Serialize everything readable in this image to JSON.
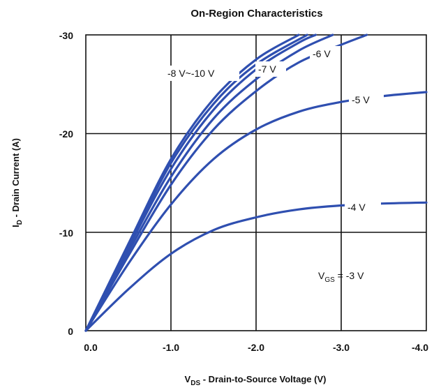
{
  "chart_data": {
    "type": "line",
    "title": "On-Region Characteristics",
    "xlabel_main": "V",
    "xlabel_sub": "DS",
    "xlabel_rest": " - Drain-to-Source Voltage (V)",
    "ylabel_main": "I",
    "ylabel_sub": "D",
    "ylabel_rest": " - Drain Current (A)",
    "xlim": [
      0,
      -4
    ],
    "ylim": [
      0,
      -30
    ],
    "xticks": [
      "0.0",
      "-1.0",
      "-2.0",
      "-3.0",
      "-4.0"
    ],
    "yticks": [
      "0",
      "-10",
      "-20",
      "-30"
    ],
    "grid": true,
    "series": [
      {
        "name": "-10 V",
        "x": [
          0,
          -0.5,
          -1.0,
          -1.5,
          -2.0,
          -2.5
        ],
        "y": [
          0,
          -8.8,
          -17.4,
          -23.5,
          -27.5,
          -30
        ]
      },
      {
        "name": "-9 V",
        "x": [
          0,
          -0.5,
          -1.0,
          -1.5,
          -2.0,
          -2.6
        ],
        "y": [
          0,
          -8.6,
          -17.0,
          -23.0,
          -27.0,
          -30
        ]
      },
      {
        "name": "-8 V",
        "x": [
          0,
          -0.5,
          -1.0,
          -1.5,
          -2.0,
          -2.5,
          -2.7
        ],
        "y": [
          0,
          -8.4,
          -16.4,
          -22.4,
          -26.5,
          -29.2,
          -30
        ]
      },
      {
        "name": "-7 V",
        "x": [
          0,
          -0.5,
          -1.0,
          -1.5,
          -2.0,
          -2.5,
          -2.9
        ],
        "y": [
          0,
          -8.0,
          -15.6,
          -21.5,
          -25.5,
          -28.4,
          -30
        ]
      },
      {
        "name": "-6 V",
        "x": [
          0,
          -0.5,
          -1.0,
          -1.5,
          -2.0,
          -2.5,
          -3.0,
          -3.3
        ],
        "y": [
          0,
          -7.6,
          -14.8,
          -20.4,
          -24.3,
          -27.2,
          -29.0,
          -30
        ]
      },
      {
        "name": "-5 V",
        "x": [
          0,
          -0.5,
          -1.0,
          -1.5,
          -2.0,
          -2.5,
          -3.0,
          -3.5,
          -4.0
        ],
        "y": [
          0,
          -6.8,
          -12.8,
          -17.4,
          -20.4,
          -22.2,
          -23.2,
          -23.8,
          -24.2
        ]
      },
      {
        "name": "-4 V",
        "x": [
          0,
          -0.5,
          -1.0,
          -1.5,
          -2.0,
          -2.5,
          -3.0,
          -3.5,
          -4.0
        ],
        "y": [
          0,
          -4.2,
          -7.8,
          -10.2,
          -11.5,
          -12.3,
          -12.7,
          -12.9,
          -13.0
        ]
      }
    ],
    "labels": {
      "group": "-8 V~-10 V",
      "v7": "-7 V",
      "v6": "-6 V",
      "v5": "-5 V",
      "v4": "-4 V",
      "vgs_main": "V",
      "vgs_sub": "GS",
      "vgs_rest": " = -3 V"
    }
  }
}
